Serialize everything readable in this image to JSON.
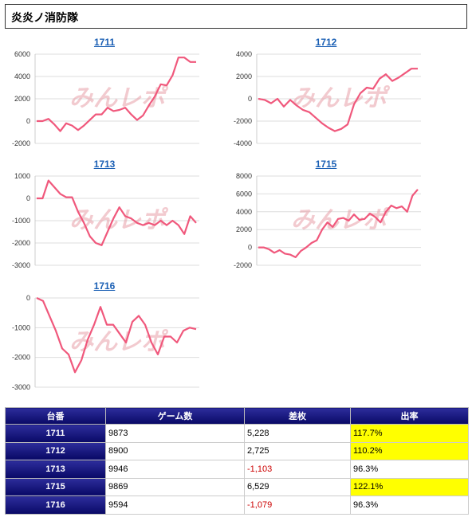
{
  "header": {
    "title": "炎炎ノ消防隊"
  },
  "watermark": "みんレポ",
  "colors": {
    "line": "#f0587c",
    "title_link": "#1a5fb4",
    "header_bg": "#0b0b72",
    "highlight": "#ffff00",
    "negative": "#cc0000"
  },
  "chart_data": [
    {
      "type": "line",
      "title": "1711",
      "ylim": [
        -2000,
        6000
      ],
      "yticks": [
        "6000",
        "4000",
        "2000",
        "0",
        "-2000"
      ],
      "ytick_values": [
        6000,
        4000,
        2000,
        0,
        -2000
      ],
      "values": [
        0,
        0,
        200,
        -300,
        -900,
        -200,
        -400,
        -800,
        -400,
        100,
        600,
        600,
        1200,
        900,
        1000,
        1200,
        600,
        100,
        500,
        1400,
        2200,
        3300,
        3200,
        4100,
        5700,
        5700,
        5300,
        5300
      ]
    },
    {
      "type": "line",
      "title": "1712",
      "ylim": [
        -4000,
        4000
      ],
      "yticks": [
        "4000",
        "2000",
        "0",
        "-2000",
        "-4000"
      ],
      "ytick_values": [
        4000,
        2000,
        0,
        -2000,
        -4000
      ],
      "values": [
        0,
        -100,
        -400,
        0,
        -700,
        -100,
        -600,
        -1000,
        -1200,
        -1700,
        -2200,
        -2600,
        -2900,
        -2700,
        -2300,
        -500,
        500,
        1000,
        900,
        1800,
        2200,
        1600,
        1900,
        2300,
        2700,
        2700
      ]
    },
    {
      "type": "line",
      "title": "1713",
      "ylim": [
        -3000,
        1000
      ],
      "yticks": [
        "1000",
        "0",
        "-1000",
        "-2000",
        "-3000"
      ],
      "ytick_values": [
        1000,
        0,
        -1000,
        -2000,
        -3000
      ],
      "values": [
        0,
        0,
        800,
        500,
        200,
        50,
        50,
        -600,
        -1100,
        -1700,
        -2000,
        -2100,
        -1500,
        -900,
        -400,
        -800,
        -900,
        -1100,
        -1200,
        -1100,
        -1200,
        -1000,
        -1200,
        -1000,
        -1200,
        -1600,
        -800,
        -1100
      ]
    },
    {
      "type": "line",
      "title": "1715",
      "ylim": [
        -2000,
        8000
      ],
      "yticks": [
        "8000",
        "6000",
        "4000",
        "2000",
        "0",
        "-2000"
      ],
      "ytick_values": [
        8000,
        6000,
        4000,
        2000,
        0,
        -2000
      ],
      "values": [
        0,
        0,
        -200,
        -600,
        -300,
        -700,
        -800,
        -1100,
        -400,
        0,
        500,
        800,
        2000,
        2800,
        2300,
        3200,
        3300,
        3000,
        3700,
        3100,
        3200,
        3800,
        3400,
        2800,
        4000,
        4700,
        4400,
        4600,
        4000,
        5800,
        6500
      ]
    },
    {
      "type": "line",
      "title": "1716",
      "ylim": [
        -3000,
        0
      ],
      "yticks": [
        "0",
        "-1000",
        "-2000",
        "-3000"
      ],
      "ytick_values": [
        0,
        -1000,
        -2000,
        -3000
      ],
      "values": [
        0,
        -100,
        -600,
        -1100,
        -1700,
        -1900,
        -2500,
        -2100,
        -1400,
        -900,
        -300,
        -900,
        -900,
        -1200,
        -1500,
        -800,
        -600,
        -900,
        -1500,
        -1900,
        -1300,
        -1300,
        -1500,
        -1100,
        -1000,
        -1050
      ]
    }
  ],
  "table": {
    "headers": [
      "台番",
      "ゲーム数",
      "差枚",
      "出率"
    ],
    "rows": [
      {
        "machine": "1711",
        "games": "9873",
        "diff": "5,228",
        "rate": "117.7%"
      },
      {
        "machine": "1712",
        "games": "8900",
        "diff": "2,725",
        "rate": "110.2%"
      },
      {
        "machine": "1713",
        "games": "9946",
        "diff": "-1,103",
        "rate": "96.3%"
      },
      {
        "machine": "1715",
        "games": "9869",
        "diff": "6,529",
        "rate": "122.1%"
      },
      {
        "machine": "1716",
        "games": "9594",
        "diff": "-1,079",
        "rate": "96.3%"
      }
    ]
  }
}
